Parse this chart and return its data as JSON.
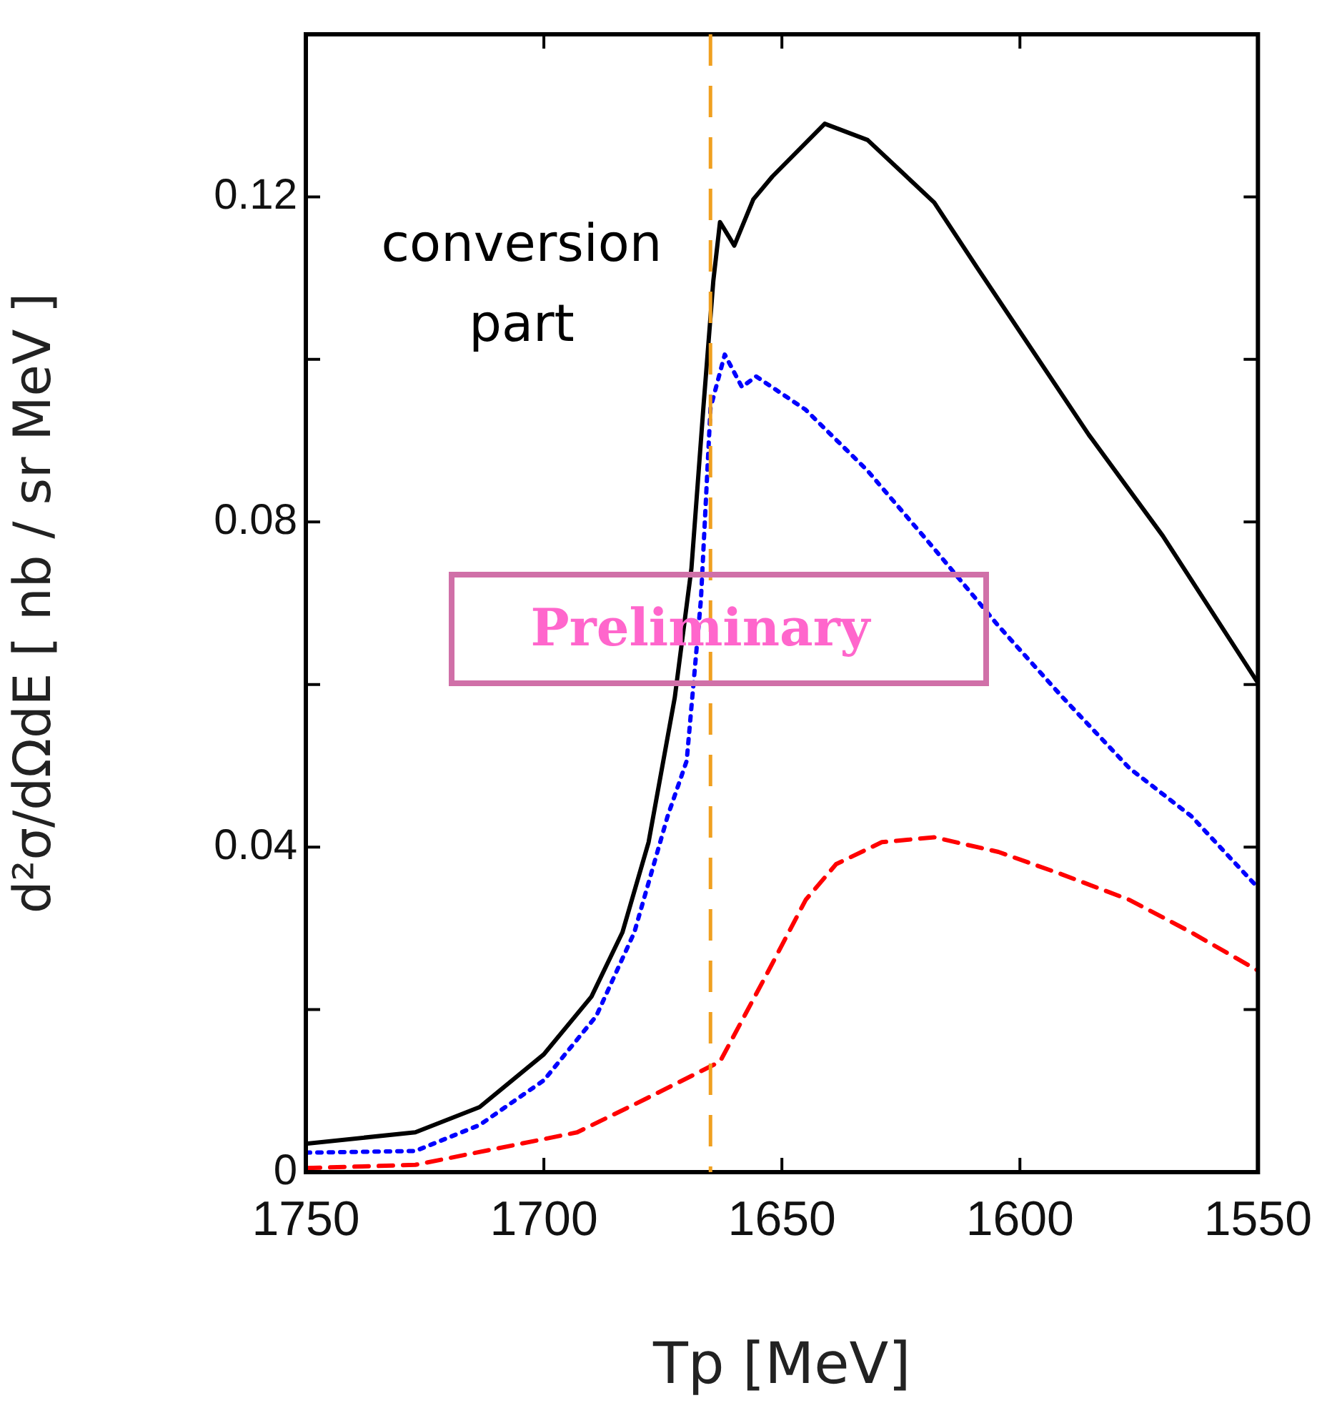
{
  "chart_data": {
    "type": "line",
    "xlabel": "Tp [MeV]",
    "ylabel": "d²σ/dΩdE [ nb / sr MeV ]",
    "xlim": [
      1750,
      1550
    ],
    "xticks": [
      1750,
      1700,
      1650,
      1600,
      1550
    ],
    "ylim": [
      0,
      0.14
    ],
    "yticks": [
      0,
      {
        "value": 0.02,
        "label": null
      },
      0.04,
      {
        "value": 0.06,
        "label": null
      },
      0.08,
      {
        "value": 0.1,
        "label": null
      },
      0.12
    ],
    "grid": false,
    "legend": false,
    "marker": "none",
    "series": [
      {
        "color": "#000000",
        "line_style": "solid",
        "x": [
          1750,
          1727,
          1713.5,
          1700,
          1690,
          1683.5,
          1678,
          1672.5,
          1669,
          1666.5,
          1664.4,
          1663,
          1660,
          1656,
          1652,
          1641,
          1632,
          1618,
          1609,
          1585.5,
          1570,
          1550
        ],
        "values": [
          0.0035,
          0.0049,
          0.008,
          0.0145,
          0.0216,
          0.0295,
          0.0406,
          0.0584,
          0.0743,
          0.094,
          0.1097,
          0.1169,
          0.114,
          0.1197,
          0.1225,
          0.129,
          0.127,
          0.1193,
          0.1113,
          0.0907,
          0.0783,
          0.0602
        ]
      },
      {
        "color": "#0000ff",
        "line_style": "dotted",
        "x": [
          1750,
          1727,
          1713.5,
          1700,
          1689,
          1681,
          1674,
          1670,
          1667,
          1665,
          1662,
          1658.4,
          1655.4,
          1645,
          1632,
          1618,
          1604.5,
          1591,
          1577,
          1564,
          1550
        ],
        "values": [
          0.0024,
          0.0026,
          0.0058,
          0.0113,
          0.0192,
          0.0295,
          0.0438,
          0.0506,
          0.0705,
          0.094,
          0.1006,
          0.0966,
          0.0979,
          0.0938,
          0.0863,
          0.0767,
          0.0672,
          0.0584,
          0.0497,
          0.0438,
          0.035
        ]
      },
      {
        "color": "#ff0000",
        "line_style": "dashed",
        "x": [
          1750,
          1727,
          1706.5,
          1693,
          1679,
          1663,
          1653.6,
          1645,
          1638.6,
          1629,
          1618,
          1604.5,
          1591,
          1577,
          1564,
          1550
        ],
        "values": [
          0.0005,
          0.0009,
          0.0033,
          0.0049,
          0.0089,
          0.0136,
          0.0239,
          0.0335,
          0.0379,
          0.0406,
          0.0412,
          0.0394,
          0.0366,
          0.0335,
          0.0295,
          0.0248
        ]
      }
    ],
    "ref_lines": [
      {
        "axis": "x",
        "value": 1665,
        "color": "#f0a020",
        "line_style": "dashed"
      }
    ],
    "annotations": [
      "conversion part",
      "Preliminary"
    ]
  }
}
